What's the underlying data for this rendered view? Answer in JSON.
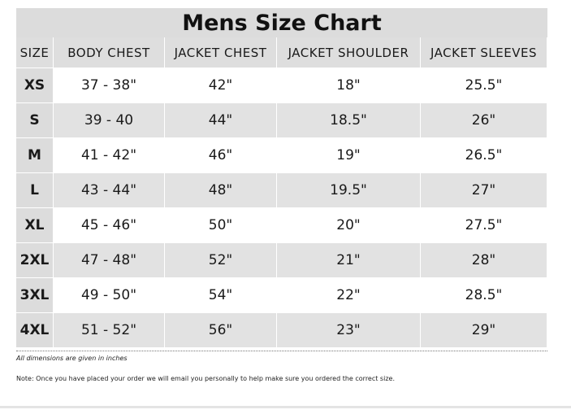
{
  "table": {
    "title": "Mens Size Chart",
    "columns": [
      "SIZE",
      "BODY CHEST",
      "JACKET CHEST",
      "JACKET SHOULDER",
      "JACKET SLEEVES"
    ],
    "rows": [
      [
        "XS",
        "37 - 38\"",
        "42\"",
        "18\"",
        "25.5\""
      ],
      [
        "S",
        "39 - 40",
        "44\"",
        "18.5\"",
        "26\""
      ],
      [
        "M",
        "41 - 42\"",
        "46\"",
        "19\"",
        "26.5\""
      ],
      [
        "L",
        "43 - 44\"",
        "48\"",
        "19.5\"",
        "27\""
      ],
      [
        "XL",
        "45 - 46\"",
        "50\"",
        "20\"",
        "27.5\""
      ],
      [
        "2XL",
        "47 - 48\"",
        "52\"",
        "21\"",
        "28\""
      ],
      [
        "3XL",
        "49 - 50\"",
        "54\"",
        "22\"",
        "28.5\""
      ],
      [
        "4XL",
        "51 - 52\"",
        "56\"",
        "23\"",
        "29\""
      ]
    ]
  },
  "footer": {
    "dimensions_note": "All dimensions are given in inches",
    "order_note": "Note: Once you have placed your order we will email you personally to help make sure you ordered the correct size."
  }
}
